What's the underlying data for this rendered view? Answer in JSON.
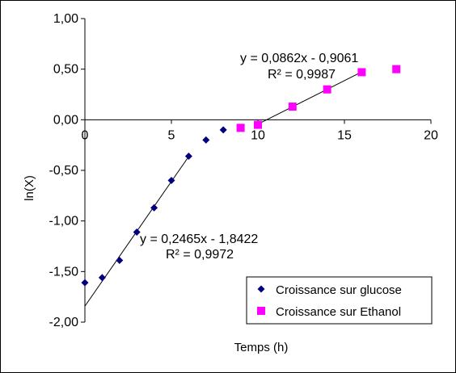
{
  "chart_data": {
    "type": "scatter",
    "title": "",
    "xlabel": "Temps (h)",
    "ylabel": "ln(X)",
    "xlim": [
      0,
      20
    ],
    "ylim": [
      -2.0,
      1.0
    ],
    "x_ticks": [
      "0",
      "5",
      "10",
      "15",
      "20"
    ],
    "y_ticks": [
      "1,00",
      "0,50",
      "0,00",
      "-0,50",
      "-1,00",
      "-1,50",
      "-2,00"
    ],
    "grid": false,
    "legend_position": "bottom-right",
    "series": [
      {
        "name": "Croissance sur glucose",
        "color": "#000080",
        "marker": "diamond",
        "x": [
          0,
          1,
          2,
          3,
          4,
          5,
          6,
          7,
          8
        ],
        "y": [
          -1.61,
          -1.56,
          -1.39,
          -1.11,
          -0.87,
          -0.6,
          -0.36,
          -0.2,
          -0.1
        ]
      },
      {
        "name": "Croissance sur Ethanol",
        "color": "#ff00ff",
        "marker": "square",
        "x": [
          9,
          10,
          12,
          14,
          16,
          18
        ],
        "y": [
          -0.08,
          -0.05,
          0.13,
          0.3,
          0.47,
          0.5
        ]
      }
    ],
    "trendlines": [
      {
        "series": "Croissance sur glucose",
        "x_range": [
          0,
          6
        ],
        "slope": 0.2465,
        "intercept": -1.8422,
        "equation": "y = 0,2465x - 1,8422",
        "r2": "R² = 0,9972"
      },
      {
        "series": "Croissance sur Ethanol",
        "x_range": [
          10,
          16
        ],
        "slope": 0.0862,
        "intercept": -0.9061,
        "equation": "y = 0,0862x - 0,9061",
        "r2": "R² = 0,9987"
      }
    ]
  }
}
